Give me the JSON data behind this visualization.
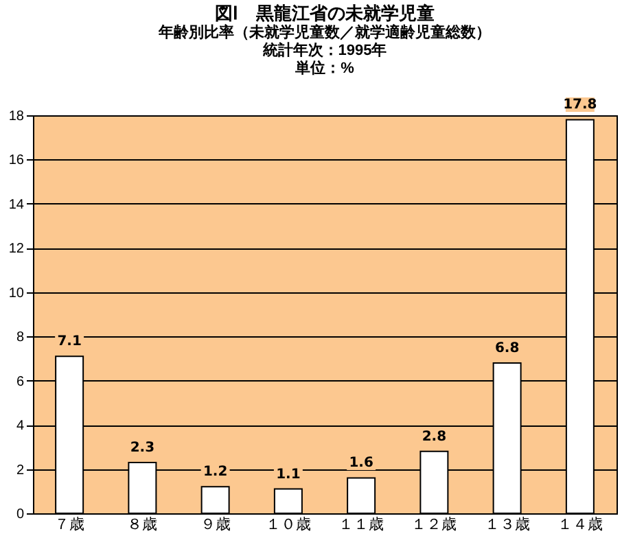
{
  "chart_data": {
    "type": "bar",
    "title": "図Ⅰ　黒龍江省の未就学児童",
    "subtitle": "年齢別比率（未就学児童数／就学適齢児童総数）",
    "annotations": [
      "統計年次：1995年",
      "単位：%"
    ],
    "categories": [
      "７歳",
      "８歳",
      "９歳",
      "１０歳",
      "１１歳",
      "１２歳",
      "１３歳",
      "１４歳"
    ],
    "values": [
      7.1,
      2.3,
      1.2,
      1.1,
      1.6,
      2.8,
      6.8,
      17.8
    ],
    "color": "#ffffff",
    "data_labels": true,
    "grid": "y",
    "ylim": [
      0,
      18
    ],
    "yticks": [
      0,
      2,
      4,
      6,
      8,
      10,
      12,
      14,
      16,
      18
    ]
  }
}
